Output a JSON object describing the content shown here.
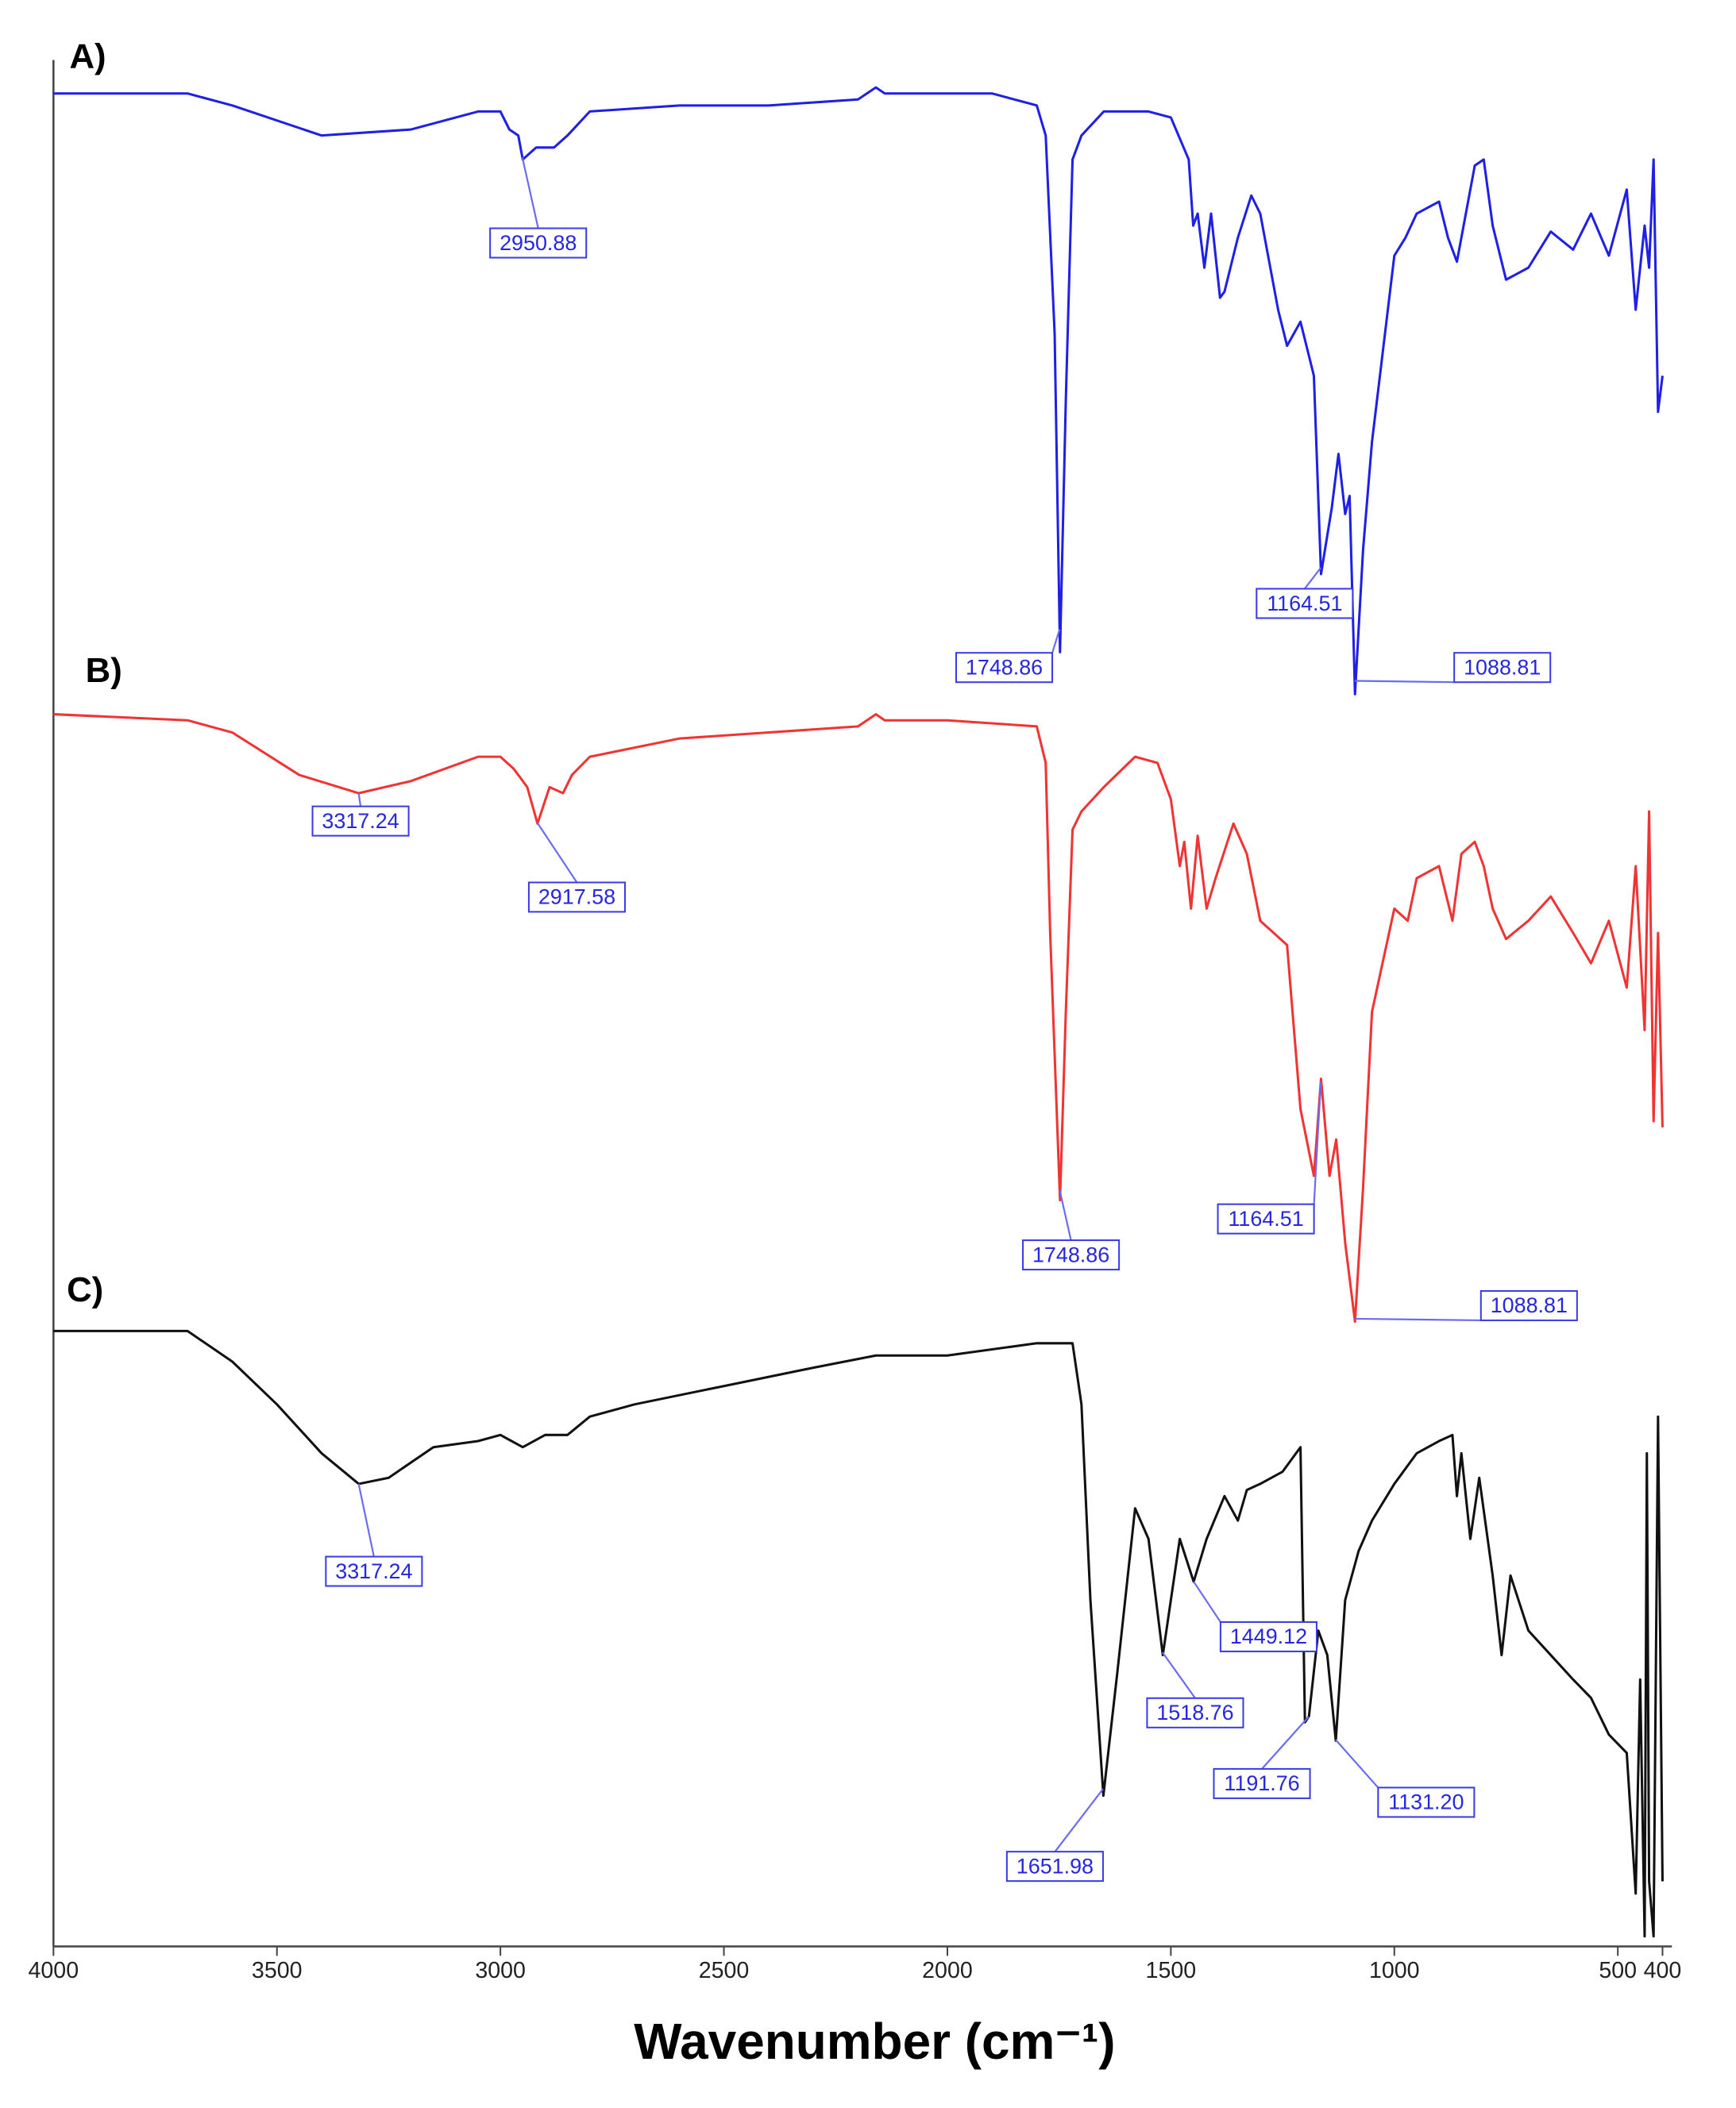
{
  "chart_data": [
    {
      "type": "line",
      "title": "A)",
      "color": "#1f1fe6",
      "xlim": [
        4000,
        400
      ],
      "ylim": [
        0,
        100
      ],
      "x": [
        4000,
        3700,
        3600,
        3400,
        3200,
        3050,
        3000,
        2980,
        2960,
        2950,
        2920,
        2880,
        2850,
        2800,
        2600,
        2400,
        2200,
        2160,
        2140,
        2050,
        1900,
        1800,
        1780,
        1760,
        1748,
        1735,
        1720,
        1700,
        1650,
        1550,
        1500,
        1460,
        1450,
        1440,
        1425,
        1410,
        1390,
        1380,
        1350,
        1320,
        1300,
        1260,
        1240,
        1210,
        1180,
        1164,
        1140,
        1125,
        1110,
        1100,
        1088,
        1070,
        1050,
        1000,
        975,
        950,
        900,
        880,
        860,
        850,
        820,
        800,
        780,
        750,
        700,
        650,
        600,
        560,
        520,
        480,
        460,
        440,
        430,
        420,
        410,
        400
      ],
      "values": [
        100,
        100,
        98,
        93,
        94,
        97,
        97,
        94,
        93,
        89,
        91,
        91,
        93,
        97,
        98,
        98,
        99,
        101,
        100,
        100,
        100,
        98,
        93,
        60,
        7,
        49,
        89,
        93,
        97,
        97,
        96,
        89,
        78,
        80,
        71,
        80,
        66,
        67,
        76,
        83,
        80,
        64,
        58,
        62,
        53,
        20,
        31,
        40,
        30,
        33,
        0,
        24,
        42,
        73,
        76,
        80,
        82,
        76,
        72,
        76,
        88,
        89,
        78,
        69,
        71,
        77,
        74,
        80,
        73,
        84,
        64,
        78,
        71,
        89,
        47,
        53
      ],
      "annotations": [
        {
          "text": "2950.88",
          "x": 2950.88
        },
        {
          "text": "1748.86",
          "x": 1748.86
        },
        {
          "text": "1164.51",
          "x": 1164.51
        },
        {
          "text": "1088.81",
          "x": 1088.81
        }
      ]
    },
    {
      "type": "line",
      "title": "B)",
      "color": "#f03434",
      "xlim": [
        4000,
        400
      ],
      "ylim": [
        0,
        100
      ],
      "x": [
        4000,
        3700,
        3600,
        3450,
        3317,
        3200,
        3050,
        3000,
        2970,
        2940,
        2917,
        2890,
        2860,
        2840,
        2800,
        2600,
        2400,
        2200,
        2160,
        2140,
        2000,
        1800,
        1780,
        1770,
        1748,
        1735,
        1720,
        1700,
        1650,
        1580,
        1530,
        1500,
        1480,
        1470,
        1455,
        1440,
        1420,
        1400,
        1360,
        1330,
        1300,
        1270,
        1240,
        1210,
        1180,
        1164,
        1145,
        1130,
        1110,
        1088,
        1070,
        1050,
        1000,
        970,
        950,
        900,
        870,
        850,
        820,
        800,
        780,
        750,
        700,
        650,
        600,
        560,
        520,
        480,
        460,
        440,
        430,
        420,
        410,
        400
      ],
      "values": [
        100,
        99,
        97,
        90,
        87,
        89,
        93,
        93,
        91,
        88,
        82,
        88,
        87,
        90,
        93,
        96,
        97,
        98,
        100,
        99,
        99,
        98,
        92,
        64,
        20,
        51,
        81,
        84,
        88,
        93,
        92,
        86,
        75,
        79,
        68,
        80,
        68,
        73,
        82,
        77,
        66,
        64,
        62,
        35,
        24,
        40,
        24,
        30,
        13,
        0,
        22,
        51,
        68,
        66,
        73,
        75,
        66,
        77,
        79,
        75,
        68,
        63,
        66,
        70,
        64,
        59,
        66,
        55,
        75,
        48,
        84,
        33,
        64,
        32
      ],
      "annotations": [
        {
          "text": "3317.24",
          "x": 3317.24
        },
        {
          "text": "2917.58",
          "x": 2917.58
        },
        {
          "text": "1748.86",
          "x": 1748.86
        },
        {
          "text": "1164.51",
          "x": 1164.51
        },
        {
          "text": "1088.81",
          "x": 1088.81
        }
      ]
    },
    {
      "type": "line",
      "title": "C)",
      "color": "#111111",
      "xlim": [
        4000,
        400
      ],
      "ylim": [
        0,
        100
      ],
      "x": [
        4000,
        3700,
        3600,
        3500,
        3400,
        3317,
        3250,
        3150,
        3050,
        3000,
        2950,
        2900,
        2850,
        2800,
        2700,
        2500,
        2300,
        2160,
        2000,
        1800,
        1720,
        1700,
        1680,
        1651,
        1620,
        1580,
        1550,
        1518,
        1500,
        1480,
        1449,
        1420,
        1380,
        1350,
        1330,
        1300,
        1250,
        1210,
        1200,
        1191,
        1170,
        1150,
        1131,
        1110,
        1080,
        1050,
        1000,
        950,
        900,
        870,
        860,
        850,
        830,
        810,
        780,
        760,
        740,
        700,
        650,
        600,
        560,
        520,
        480,
        460,
        450,
        440,
        435,
        430,
        420,
        410,
        400
      ],
      "values": [
        100,
        100,
        95,
        88,
        80,
        75,
        76,
        81,
        82,
        83,
        81,
        83,
        83,
        86,
        88,
        91,
        94,
        96,
        96,
        98,
        98,
        88,
        56,
        24,
        44,
        71,
        66,
        47,
        56,
        66,
        59,
        66,
        73,
        69,
        74,
        75,
        77,
        81,
        36,
        37,
        51,
        47,
        33,
        56,
        64,
        69,
        75,
        80,
        82,
        83,
        73,
        80,
        66,
        76,
        60,
        47,
        60,
        51,
        47,
        43,
        40,
        34,
        31,
        8,
        43,
        1,
        80,
        10,
        1,
        86,
        10
      ],
      "annotations": [
        {
          "text": "3317.24",
          "x": 3317.24
        },
        {
          "text": "1651.98",
          "x": 1651.98
        },
        {
          "text": "1518.76",
          "x": 1518.76
        },
        {
          "text": "1449.12",
          "x": 1449.12
        },
        {
          "text": "1191.76",
          "x": 1191.76
        },
        {
          "text": "1131.20",
          "x": 1131.2
        }
      ],
      "xticks": [
        4000,
        3500,
        3000,
        2500,
        2000,
        1500,
        1000,
        500,
        400
      ],
      "x_label": "Wavenumber (cm⁻¹)"
    }
  ]
}
